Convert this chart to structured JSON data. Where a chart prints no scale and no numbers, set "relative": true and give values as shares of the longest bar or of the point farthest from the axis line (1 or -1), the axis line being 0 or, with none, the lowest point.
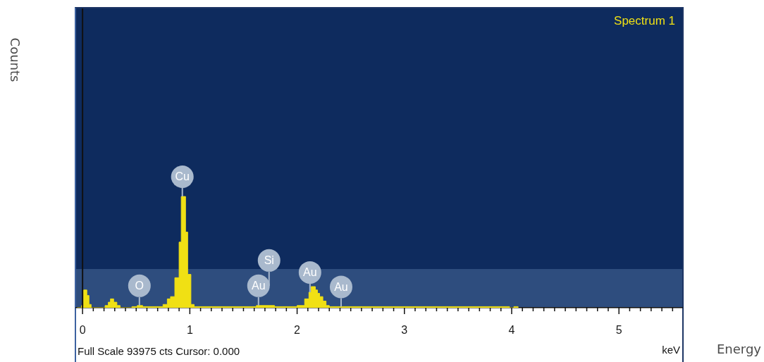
{
  "chart_data": {
    "type": "area",
    "relative": true,
    "xlabel": "Energy",
    "legend": "top right",
    "xlim": [
      -0.06,
      5.59
    ],
    "xticks": [
      0,
      {
        "value": 0.1,
        "label": null
      },
      {
        "value": 0.2,
        "label": null
      },
      {
        "value": 0.3,
        "label": null
      },
      {
        "value": 0.4,
        "label": null
      },
      {
        "value": 0.5,
        "label": null
      },
      {
        "value": 0.6,
        "label": null
      },
      {
        "value": 0.7,
        "label": null
      },
      {
        "value": 0.8,
        "label": null
      },
      {
        "value": 0.9,
        "label": null
      },
      1,
      {
        "value": 1.1,
        "label": null
      },
      {
        "value": 1.2,
        "label": null
      },
      {
        "value": 1.3,
        "label": null
      },
      {
        "value": 1.4,
        "label": null
      },
      {
        "value": 1.5,
        "label": null
      },
      {
        "value": 1.6,
        "label": null
      },
      {
        "value": 1.7,
        "label": null
      },
      {
        "value": 1.8,
        "label": null
      },
      {
        "value": 1.9,
        "label": null
      },
      2,
      {
        "value": 2.1,
        "label": null
      },
      {
        "value": 2.2,
        "label": null
      },
      {
        "value": 2.3,
        "label": null
      },
      {
        "value": 2.4,
        "label": null
      },
      {
        "value": 2.5,
        "label": null
      },
      {
        "value": 2.6,
        "label": null
      },
      {
        "value": 2.7,
        "label": null
      },
      {
        "value": 2.8,
        "label": null
      },
      {
        "value": 2.9,
        "label": null
      },
      3,
      {
        "value": 3.1,
        "label": null
      },
      {
        "value": 3.2,
        "label": null
      },
      {
        "value": 3.3,
        "label": null
      },
      {
        "value": 3.4,
        "label": null
      },
      {
        "value": 3.5,
        "label": null
      },
      {
        "value": 3.6,
        "label": null
      },
      {
        "value": 3.7,
        "label": null
      },
      {
        "value": 3.8,
        "label": null
      },
      {
        "value": 3.9,
        "label": null
      },
      4,
      {
        "value": 4.1,
        "label": null
      },
      {
        "value": 4.2,
        "label": null
      },
      {
        "value": 4.3,
        "label": null
      },
      {
        "value": 4.4,
        "label": null
      },
      {
        "value": 4.5,
        "label": null
      },
      {
        "value": 4.6,
        "label": null
      },
      {
        "value": 4.7,
        "label": null
      },
      {
        "value": 4.8,
        "label": null
      },
      {
        "value": 4.9,
        "label": null
      },
      5,
      {
        "value": 5.1,
        "label": null
      },
      {
        "value": 5.2,
        "label": null
      },
      {
        "value": 5.3,
        "label": null
      },
      {
        "value": 5.4,
        "label": null
      },
      {
        "value": 5.5,
        "label": null
      }
    ],
    "x": [
      -0.05,
      -0.01,
      0.01,
      0.04,
      0.06,
      0.08,
      0.21,
      0.24,
      0.26,
      0.29,
      0.32,
      0.35,
      0.46,
      0.51,
      0.56,
      0.75,
      0.79,
      0.82,
      0.86,
      0.9,
      0.92,
      0.96,
      0.98,
      1.01,
      1.04,
      1.62,
      1.79,
      2.0,
      2.07,
      2.11,
      2.13,
      2.17,
      2.19,
      2.21,
      2.24,
      2.27,
      2.3,
      3.98,
      4.02,
      4.06
    ],
    "series": [
      {
        "name": "Spectrum 1",
        "color": "#f0e014",
        "values": [
          0,
          0.02,
          0.16,
          0.11,
          0.03,
          0,
          0.02,
          0.05,
          0.08,
          0.05,
          0.02,
          0,
          0.01,
          0.02,
          0.01,
          0.03,
          0.08,
          0.1,
          0.27,
          0.59,
          1.0,
          0.68,
          0.3,
          0.03,
          0.01,
          0.02,
          0.01,
          0.02,
          0.08,
          0.14,
          0.19,
          0.16,
          0.13,
          0.1,
          0.06,
          0.02,
          0.01,
          0,
          0.01,
          0
        ]
      }
    ],
    "ref_lines": [
      {
        "axis": "x",
        "value": 0,
        "color": "#111111"
      }
    ],
    "annotations": [
      "Full Scale 93975 cts Cursor: 0.000",
      "keV",
      "Counts",
      {
        "text": "O",
        "x": 0.53,
        "y": 0.02
      },
      {
        "text": "Cu",
        "x": 0.93,
        "y": 1.0
      },
      {
        "text": "Au",
        "x": 1.64,
        "y": 0.02
      },
      "Si",
      {
        "text": "Au",
        "x": 2.12,
        "y": 0.14
      },
      {
        "text": "Au",
        "x": 2.41,
        "y": 0.01
      }
    ]
  }
}
